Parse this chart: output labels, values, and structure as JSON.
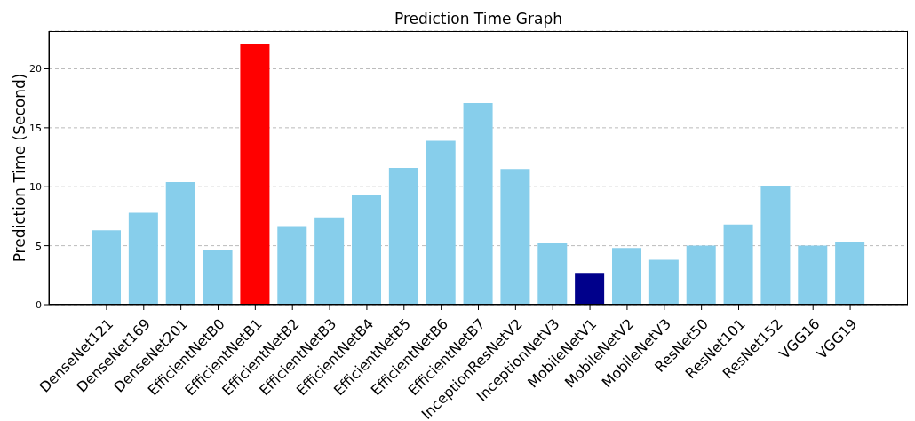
{
  "chart_data": {
    "type": "bar",
    "title": "Prediction Time Graph",
    "ylabel": "Prediction Time (Second)",
    "categories": [
      "DenseNet121",
      "DenseNet169",
      "DenseNet201",
      "EfficientNetB0",
      "EfficientNetB1",
      "EfficientNetB2",
      "EfficientNetB3",
      "EfficientNetB4",
      "EfficientNetB5",
      "EfficientNetB6",
      "EfficientNetB7",
      "InceptionResNetV2",
      "InceptionNetV3",
      "MobileNetV1",
      "MobileNetV2",
      "MobileNetV3",
      "ResNet50",
      "ResNet101",
      "ResNet152",
      "VGG16",
      "VGG19"
    ],
    "values": [
      6.3,
      7.8,
      10.4,
      4.6,
      22.1,
      6.6,
      7.4,
      9.3,
      11.6,
      13.9,
      17.1,
      11.5,
      5.2,
      2.7,
      4.8,
      3.8,
      5.0,
      6.8,
      10.1,
      5.0,
      5.3
    ],
    "colors": [
      "#87ceeb",
      "#87ceeb",
      "#87ceeb",
      "#87ceeb",
      "#ff0000",
      "#87ceeb",
      "#87ceeb",
      "#87ceeb",
      "#87ceeb",
      "#87ceeb",
      "#87ceeb",
      "#87ceeb",
      "#87ceeb",
      "#00008b",
      "#87ceeb",
      "#87ceeb",
      "#87ceeb",
      "#87ceeb",
      "#87ceeb",
      "#87ceeb",
      "#87ceeb"
    ],
    "ylim": [
      0,
      23.2
    ],
    "yticks": [
      0,
      5,
      10,
      15,
      20
    ],
    "grid": "y"
  }
}
